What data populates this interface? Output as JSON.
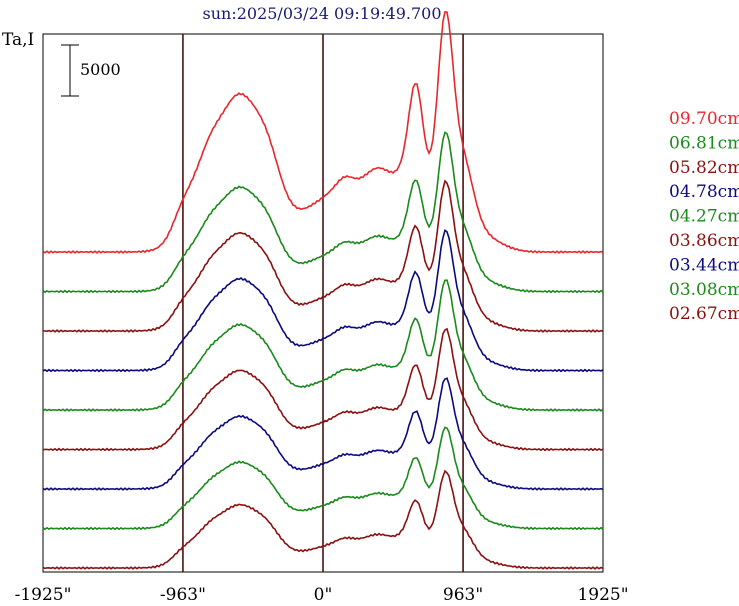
{
  "chart_data": {
    "type": "line",
    "title": "sun:2025/03/24 09:19:49.700",
    "ylabel": "Ta,I",
    "scale_bar_label": "5000",
    "scale_bar_value": 5000,
    "xlim": [
      -1925,
      1925
    ],
    "x_ticks": [
      {
        "value": -1925,
        "label": "-1925\""
      },
      {
        "value": -963,
        "label": "-963\""
      },
      {
        "value": 0,
        "label": "0\""
      },
      {
        "value": 963,
        "label": "963\""
      },
      {
        "value": 1925,
        "label": "1925\""
      }
    ],
    "reference_lines": [
      -963,
      0,
      963
    ],
    "colors": {
      "red": "#e8262b",
      "green": "#1a8a1a",
      "darkred": "#8b1010",
      "navy": "#0a0a80",
      "frame": "#000000",
      "refline": "#4a1010",
      "title": "#1a1a70"
    },
    "series": [
      {
        "name": "09.70cm",
        "color": "#e8262b",
        "amp": 1.0,
        "baseline_index": 0
      },
      {
        "name": "06.81cm",
        "color": "#1a8a1a",
        "amp": 0.66,
        "baseline_index": 1
      },
      {
        "name": "05.82cm",
        "color": "#8b1010",
        "amp": 0.62,
        "baseline_index": 2
      },
      {
        "name": "04.78cm",
        "color": "#0a0a80",
        "amp": 0.58,
        "baseline_index": 3
      },
      {
        "name": "04.27cm",
        "color": "#1a8a1a",
        "amp": 0.54,
        "baseline_index": 4
      },
      {
        "name": "03.86cm",
        "color": "#8b1010",
        "amp": 0.5,
        "baseline_index": 5
      },
      {
        "name": "03.44cm",
        "color": "#0a0a80",
        "amp": 0.46,
        "baseline_index": 6
      },
      {
        "name": "03.08cm",
        "color": "#1a8a1a",
        "amp": 0.42,
        "baseline_index": 7
      },
      {
        "name": "02.67cm",
        "color": "#8b1010",
        "amp": 0.4,
        "baseline_index": 8
      }
    ],
    "grid": false,
    "legend_position": "right"
  }
}
